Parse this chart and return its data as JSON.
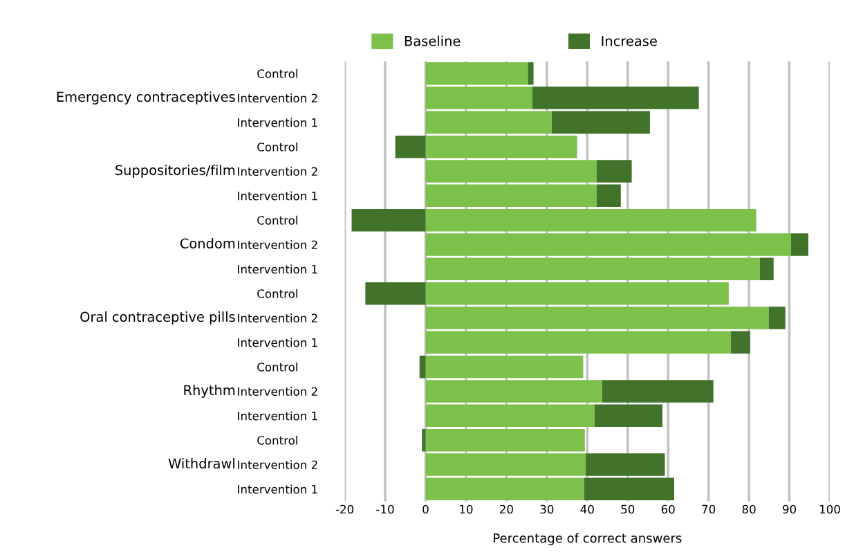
{
  "chart_data": {
    "type": "bar",
    "orientation": "horizontal",
    "stacked": true,
    "xlabel": "Percentage of correct answers",
    "categories": [
      "Control",
      "Intervention 2",
      "Intervention 1",
      "Control",
      "Intervention 2",
      "Intervention 1",
      "Control",
      "Intervention 2",
      "Intervention 1",
      "Control",
      "Intervention 2",
      "Intervention 1",
      "Control",
      "Intervention 2",
      "Intervention 1",
      "Control",
      "Intervention 2",
      "Intervention 1"
    ],
    "annotations": [
      "Emergency contraceptives",
      "Suppositories/film",
      "Condom",
      "Oral contraceptive pills",
      "Rhythm",
      "Withdrawl"
    ],
    "series": [
      {
        "name": "Baseline",
        "color": "#7dc14a",
        "values": [
          25.3,
          26.4,
          31.2,
          37.5,
          42.3,
          42.3,
          81.8,
          90.4,
          82.7,
          75.0,
          84.9,
          75.5,
          39.0,
          43.7,
          41.8,
          39.4,
          39.6,
          39.2
        ]
      },
      {
        "name": "Increase",
        "color": "#41732a",
        "values": [
          1.4,
          41.2,
          24.3,
          -7.5,
          8.7,
          6.0,
          -18.3,
          4.3,
          3.4,
          -14.9,
          4.1,
          4.8,
          -1.5,
          27.5,
          16.8,
          -0.9,
          19.6,
          22.3
        ]
      }
    ],
    "xlim": [
      -20,
      100
    ],
    "xticks": [
      -20,
      -10,
      0,
      10,
      20,
      30,
      40,
      50,
      60,
      70,
      80,
      90,
      100
    ],
    "grid": "x",
    "legend": "top"
  }
}
